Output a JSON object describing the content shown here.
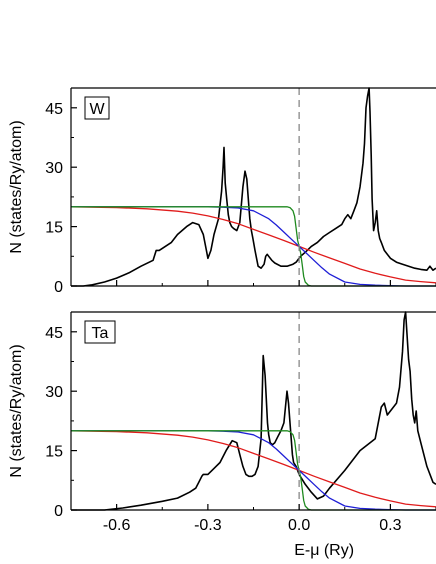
{
  "chart_data": {
    "type": "line",
    "shared_x_axis": {
      "label": "E-μ (Ry)",
      "xlim": [
        -0.75,
        0.45
      ],
      "ticks": [
        -0.6,
        -0.3,
        0.0,
        0.3
      ],
      "tick_labels": [
        "-0.6",
        "-0.3",
        "0.0",
        "0.3"
      ]
    },
    "fermi_level_marker": {
      "x": 0.0,
      "style": "dashed",
      "color": "#888888"
    },
    "colors": {
      "dos": "#000000",
      "green": "#1f8a1f",
      "blue": "#1f1fd6",
      "red": "#e01b1b",
      "fermi": "#888888"
    },
    "panels": [
      {
        "tag": "W",
        "ylabel": "N (states/Ry/atom)",
        "ylim": [
          0,
          50
        ],
        "yticks": [
          0,
          15,
          30,
          45
        ],
        "ytick_labels": [
          "0",
          "15",
          "30",
          "45"
        ],
        "series": [
          {
            "color": "black",
            "x": [
              -0.75,
              -0.71,
              -0.68,
              -0.64,
              -0.6,
              -0.56,
              -0.52,
              -0.48,
              -0.47,
              -0.46,
              -0.44,
              -0.42,
              -0.4,
              -0.37,
              -0.35,
              -0.33,
              -0.315,
              -0.305,
              -0.3,
              -0.29,
              -0.28,
              -0.265,
              -0.255,
              -0.25,
              -0.247,
              -0.243,
              -0.238,
              -0.233,
              -0.228,
              -0.222,
              -0.215,
              -0.205,
              -0.195,
              -0.185,
              -0.178,
              -0.172,
              -0.167,
              -0.162,
              -0.157,
              -0.152,
              -0.145,
              -0.135,
              -0.125,
              -0.115,
              -0.11,
              -0.105,
              -0.1,
              -0.09,
              -0.08,
              -0.06,
              -0.04,
              -0.02,
              -0.01,
              0.0,
              0.005,
              0.02,
              0.04,
              0.06,
              0.08,
              0.1,
              0.12,
              0.14,
              0.15,
              0.16,
              0.17,
              0.18,
              0.19,
              0.2,
              0.21,
              0.215,
              0.22,
              0.225,
              0.23,
              0.233,
              0.237,
              0.24,
              0.245,
              0.25,
              0.255,
              0.26,
              0.265,
              0.27,
              0.28,
              0.3,
              0.32,
              0.34,
              0.36,
              0.38,
              0.4,
              0.42,
              0.43,
              0.44,
              0.45
            ],
            "y": [
              0.0,
              0.0,
              0.3,
              1.0,
              2.0,
              3.3,
              5.0,
              6.5,
              9.0,
              9.0,
              10.0,
              11.0,
              13.0,
              15.0,
              16.0,
              15.5,
              13.0,
              9.0,
              7.0,
              9.0,
              13.0,
              17.0,
              24.0,
              30.0,
              35.0,
              26.0,
              22.0,
              18.0,
              16.0,
              15.0,
              14.5,
              14.0,
              16.0,
              25.0,
              29.0,
              27.0,
              22.0,
              17.0,
              14.0,
              12.0,
              9.0,
              5.0,
              4.5,
              5.5,
              7.5,
              8.0,
              7.5,
              6.5,
              5.8,
              5.0,
              5.0,
              5.5,
              6.0,
              7.0,
              7.5,
              8.5,
              10.0,
              11.0,
              12.5,
              13.5,
              14.5,
              15.5,
              17.0,
              18.0,
              17.0,
              19.0,
              21.0,
              25.0,
              31.0,
              36.0,
              45.0,
              48.0,
              50.0,
              44.0,
              33.0,
              22.0,
              14.0,
              16.0,
              19.0,
              14.0,
              12.0,
              11.0,
              9.0,
              7.0,
              6.0,
              5.5,
              5.0,
              4.5,
              4.2,
              4.0,
              5.0,
              4.0,
              4.5
            ]
          },
          {
            "color": "green",
            "x": [
              -0.75,
              -0.04,
              -0.03,
              -0.02,
              -0.015,
              -0.01,
              -0.005,
              0.0,
              0.005,
              0.01,
              0.015,
              0.02,
              0.03,
              0.04,
              0.45
            ],
            "y": [
              20.0,
              20.0,
              19.8,
              19.0,
              17.6,
              14.6,
              11.6,
              10.0,
              8.4,
              5.4,
              2.4,
              1.0,
              0.2,
              0.0,
              0.0
            ]
          },
          {
            "color": "blue",
            "x": [
              -0.75,
              -0.3,
              -0.25,
              -0.2,
              -0.15,
              -0.1,
              -0.075,
              -0.05,
              -0.025,
              0.0,
              0.025,
              0.05,
              0.075,
              0.1,
              0.15,
              0.2,
              0.25,
              0.3,
              0.35,
              0.45
            ],
            "y": [
              20.0,
              20.0,
              19.9,
              19.7,
              19.0,
              17.0,
              15.4,
              13.6,
              11.8,
              10.0,
              8.2,
              6.4,
              4.6,
              3.0,
              1.0,
              0.4,
              0.2,
              0.1,
              0.0,
              0.0
            ]
          },
          {
            "color": "red",
            "x": [
              -0.75,
              -0.6,
              -0.5,
              -0.4,
              -0.35,
              -0.3,
              -0.25,
              -0.2,
              -0.15,
              -0.1,
              -0.05,
              0.0,
              0.05,
              0.1,
              0.15,
              0.2,
              0.25,
              0.3,
              0.35,
              0.4,
              0.45
            ],
            "y": [
              20.0,
              19.8,
              19.5,
              18.9,
              18.4,
              17.7,
              16.8,
              15.7,
              14.3,
              12.9,
              11.5,
              10.0,
              8.5,
              7.1,
              5.7,
              4.3,
              3.2,
              2.3,
              1.5,
              1.1,
              0.8
            ]
          }
        ]
      },
      {
        "tag": "Ta",
        "ylabel": "N (states/Ry/atom)",
        "ylim": [
          0,
          50
        ],
        "yticks": [
          0,
          15,
          30,
          45
        ],
        "ytick_labels": [
          "0",
          "15",
          "30",
          "45"
        ],
        "series": [
          {
            "color": "black",
            "x": [
              -0.75,
              -0.64,
              -0.58,
              -0.52,
              -0.45,
              -0.4,
              -0.36,
              -0.34,
              -0.33,
              -0.32,
              -0.315,
              -0.3,
              -0.28,
              -0.26,
              -0.24,
              -0.22,
              -0.205,
              -0.195,
              -0.185,
              -0.175,
              -0.165,
              -0.155,
              -0.145,
              -0.135,
              -0.125,
              -0.118,
              -0.112,
              -0.108,
              -0.104,
              -0.1,
              -0.095,
              -0.088,
              -0.08,
              -0.07,
              -0.06,
              -0.05,
              -0.04,
              -0.035,
              -0.03,
              -0.025,
              -0.022,
              -0.018,
              -0.01,
              0.0,
              0.02,
              0.04,
              0.06,
              0.08,
              0.1,
              0.15,
              0.2,
              0.25,
              0.27,
              0.28,
              0.29,
              0.3,
              0.32,
              0.33,
              0.34,
              0.345,
              0.35,
              0.355,
              0.36,
              0.365,
              0.37,
              0.375,
              0.38,
              0.385,
              0.39,
              0.4,
              0.42,
              0.44,
              0.45
            ],
            "y": [
              0.0,
              0.0,
              0.5,
              1.2,
              2.2,
              3.0,
              4.5,
              5.5,
              7.0,
              8.5,
              9.0,
              9.0,
              10.5,
              12.0,
              15.0,
              17.5,
              17.0,
              14.0,
              11.0,
              9.0,
              8.5,
              8.5,
              9.0,
              11.0,
              18.0,
              39.0,
              34.0,
              28.0,
              22.0,
              19.0,
              17.0,
              16.5,
              17.0,
              18.5,
              20.0,
              22.0,
              30.0,
              27.0,
              22.0,
              17.0,
              14.0,
              12.0,
              11.0,
              9.0,
              6.5,
              4.5,
              2.8,
              3.5,
              5.5,
              10.0,
              15.0,
              18.0,
              26.0,
              27.0,
              24.0,
              25.0,
              27.0,
              31.0,
              40.0,
              48.0,
              50.0,
              44.0,
              38.0,
              35.0,
              28.0,
              24.0,
              22.0,
              25.0,
              20.0,
              17.0,
              11.0,
              7.0,
              6.5
            ]
          },
          {
            "color": "green",
            "x": [
              -0.75,
              -0.04,
              -0.03,
              -0.02,
              -0.015,
              -0.01,
              -0.005,
              0.0,
              0.005,
              0.01,
              0.015,
              0.02,
              0.03,
              0.04,
              0.45
            ],
            "y": [
              20.0,
              20.0,
              19.8,
              19.0,
              17.6,
              14.6,
              11.6,
              10.0,
              8.4,
              5.4,
              2.4,
              1.0,
              0.2,
              0.0,
              0.0
            ]
          },
          {
            "color": "blue",
            "x": [
              -0.75,
              -0.3,
              -0.25,
              -0.2,
              -0.15,
              -0.1,
              -0.075,
              -0.05,
              -0.025,
              0.0,
              0.025,
              0.05,
              0.075,
              0.1,
              0.15,
              0.2,
              0.25,
              0.3,
              0.35,
              0.45
            ],
            "y": [
              20.0,
              20.0,
              19.9,
              19.7,
              19.0,
              17.0,
              15.4,
              13.6,
              11.8,
              10.0,
              8.2,
              6.4,
              4.6,
              3.0,
              1.0,
              0.4,
              0.2,
              0.1,
              0.0,
              0.0
            ]
          },
          {
            "color": "red",
            "x": [
              -0.75,
              -0.6,
              -0.5,
              -0.4,
              -0.35,
              -0.3,
              -0.25,
              -0.2,
              -0.15,
              -0.1,
              -0.05,
              0.0,
              0.05,
              0.1,
              0.15,
              0.2,
              0.25,
              0.3,
              0.35,
              0.4,
              0.45
            ],
            "y": [
              20.0,
              19.8,
              19.5,
              18.9,
              18.4,
              17.7,
              16.8,
              15.7,
              14.3,
              12.9,
              11.5,
              10.0,
              8.5,
              7.1,
              5.7,
              4.3,
              3.2,
              2.3,
              1.5,
              1.1,
              0.8
            ]
          }
        ]
      }
    ]
  }
}
